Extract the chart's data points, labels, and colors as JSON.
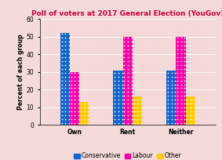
{
  "title": "Poll of voters at 2017 General Election (YouGov)",
  "categories": [
    "Own",
    "Rent",
    "Neither"
  ],
  "series": {
    "Conservative": [
      52,
      31,
      31
    ],
    "Labour": [
      30,
      50,
      50
    ],
    "Other": [
      13,
      16,
      16
    ]
  },
  "colors": {
    "Conservative": "#1166cc",
    "Labour": "#ff00aa",
    "Other": "#ffcc00"
  },
  "ylabel": "Percent of each group",
  "ylim": [
    0,
    60
  ],
  "yticks": [
    0,
    10,
    20,
    30,
    40,
    50,
    60
  ],
  "title_color": "#cc0033",
  "background_color": "#f5dada",
  "bar_width": 0.18,
  "title_fontsize": 6.5,
  "axis_fontsize": 5.5,
  "tick_fontsize": 5.5,
  "legend_fontsize": 5.5
}
